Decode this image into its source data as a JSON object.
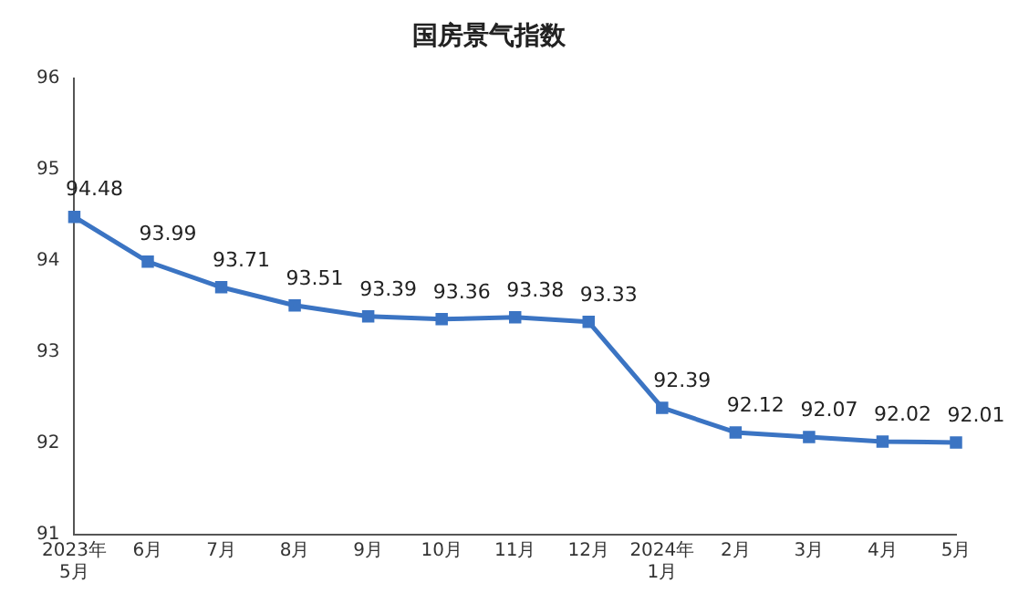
{
  "chart_data": {
    "type": "line",
    "title": "国房景气指数",
    "categories": [
      "2023年\n5月",
      "6月",
      "7月",
      "8月",
      "9月",
      "10月",
      "11月",
      "12月",
      "2024年\n1月",
      "2月",
      "3月",
      "4月",
      "5月"
    ],
    "series": [
      {
        "color": "#3b74c3",
        "values": [
          94.48,
          93.99,
          93.71,
          93.51,
          93.39,
          93.36,
          93.38,
          93.33,
          92.39,
          92.12,
          92.07,
          92.02,
          92.01
        ]
      }
    ],
    "ylim": [
      91,
      96
    ],
    "yticks": [
      91,
      92,
      93,
      94,
      95,
      96
    ],
    "grid": false,
    "legend": false,
    "marker": "square",
    "line_style": "solid",
    "data_labels": true
  }
}
